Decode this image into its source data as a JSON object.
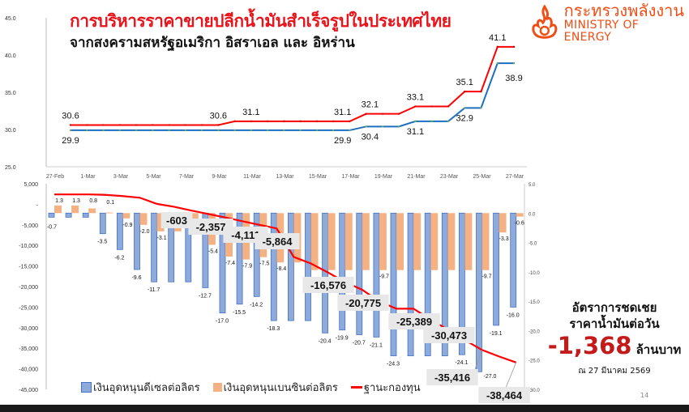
{
  "header": {
    "title": "การบริหารราคาขายปลีกน้ำมันสำเร็จรูปในประเทศไทย",
    "subtitle": "จากสงครามสหรัฐอเมริกา อิสราเอล และ อิหร่าน",
    "logo_th": "กระทรวงพลังงาน",
    "logo_en": "MINISTRY OF ENERGY",
    "logo_icon": "flame-icon"
  },
  "summary": {
    "line1": "อัตราการชดเชย",
    "line2": "ราคาน้ำมันต่อวัน",
    "value": "-1,368",
    "unit": "ล้านบาท",
    "date": "ณ 27 มีนาคม 2569"
  },
  "page_number": "14",
  "legend": {
    "diesel": "เงินอุดหนุนดีเซลต่อลิตร",
    "benzine": "เงินอุดหนุนเบนซินต่อลิตร",
    "fund": "ฐานะกองทุน"
  },
  "colors": {
    "red": "#ff0000",
    "blue": "#1f6fc1",
    "bar_blue": "#8eaadb",
    "bar_orange": "#f4b183",
    "title_red": "#e8141c",
    "logo_orange": "#f04e16"
  },
  "chart_data": [
    {
      "type": "line",
      "x_tick_labels": [
        "27-Feb",
        "1-Mar",
        "3-Mar",
        "5-Mar",
        "7-Mar",
        "9-Mar",
        "11-Mar",
        "13-Mar",
        "15-Mar",
        "17-Mar",
        "19-Mar",
        "21-Mar",
        "23-Mar",
        "25-Mar",
        "27-Mar"
      ],
      "y_tick_labels": [
        "45.0",
        "40.0",
        "35.0",
        "30.0",
        "25.0"
      ],
      "ylim": [
        25,
        45
      ],
      "points": 28,
      "series": [
        {
          "color": "#ff0000",
          "values": [
            30.6,
            30.6,
            30.6,
            30.6,
            30.6,
            30.6,
            30.6,
            30.6,
            30.6,
            30.6,
            31.1,
            31.1,
            31.1,
            31.1,
            31.1,
            31.1,
            31.1,
            31.1,
            32.1,
            32.1,
            32.1,
            33.1,
            33.1,
            33.1,
            35.1,
            35.1,
            41.1,
            41.1
          ],
          "labels": [
            {
              "i": 0,
              "text": "30.6"
            },
            {
              "i": 9,
              "text": "30.6"
            },
            {
              "i": 11,
              "text": "31.1"
            },
            {
              "i": 17,
              "text": "31.1"
            },
            {
              "i": 18,
              "text": "32.1"
            },
            {
              "i": 21,
              "text": "33.1"
            },
            {
              "i": 24,
              "text": "35.1"
            },
            {
              "i": 26,
              "text": "41.1"
            }
          ]
        },
        {
          "color": "#1f6fc1",
          "values": [
            29.9,
            29.9,
            29.9,
            29.9,
            29.9,
            29.9,
            29.9,
            29.9,
            29.9,
            29.9,
            29.9,
            29.9,
            29.9,
            29.9,
            29.9,
            29.9,
            29.9,
            29.9,
            30.4,
            30.4,
            30.4,
            31.1,
            31.1,
            31.1,
            32.9,
            32.9,
            38.9,
            38.9
          ],
          "labels": [
            {
              "i": 0,
              "text": "29.9"
            },
            {
              "i": 17,
              "text": "29.9"
            },
            {
              "i": 18,
              "text": "30.4"
            },
            {
              "i": 21,
              "text": "31.1"
            },
            {
              "i": 24,
              "text": "32.9"
            },
            {
              "i": 27,
              "text": "38.9"
            }
          ]
        }
      ]
    },
    {
      "type": "bar",
      "left_y_tick_labels": [
        "5,000",
        "-",
        "-5,000",
        "-10,000",
        "-15,000",
        "-20,000",
        "-25,000",
        "-30,000",
        "-35,000",
        "-40,000",
        "-45,000"
      ],
      "left_ylim": [
        -45000,
        5000
      ],
      "right_y_tick_labels": [
        "5.0",
        "0.0",
        "-5.0",
        "-10.0",
        "-15.0",
        "-20.0",
        "-25.0",
        "-30.0"
      ],
      "right_ylim": [
        -30,
        5
      ],
      "series": [
        {
          "name": "เงินอุดหนุนดีเซลต่อลิตร",
          "axis": "right",
          "color": "#8eaadb",
          "values": [
            -0.7,
            -0.7,
            -0.7,
            -3.5,
            -6.2,
            -9.6,
            -11.7,
            -11.7,
            -11.7,
            -12.7,
            -17.0,
            -15.5,
            -14.2,
            -18.3,
            -18.3,
            -18.3,
            -20.4,
            -19.9,
            -20.7,
            -21.1,
            -24.3,
            -24.3,
            -24.3,
            -24.3,
            -24.1,
            -27.0,
            -19.1,
            -16.0
          ],
          "labels": [
            "-0.7",
            null,
            null,
            "-3.5",
            "-6.2",
            "-9.6",
            "-11.7",
            null,
            null,
            "-12.7",
            "-17.0",
            "-15.5",
            "-14.2",
            "-18.3",
            null,
            null,
            "-20.4",
            "-19.9",
            "-20.7",
            "-21.1",
            "-24.3",
            null,
            null,
            null,
            "-24.1",
            "-27.0",
            "-19.1",
            "-16.0"
          ]
        },
        {
          "name": "เงินอุดหนุนเบนซินต่อลิตร",
          "axis": "right",
          "color": "#f4b183",
          "values": [
            1.3,
            1.3,
            0.8,
            0.1,
            -0.9,
            -2.0,
            -3.1,
            -3.1,
            -3.1,
            -5.4,
            -7.4,
            -7.9,
            -7.5,
            -8.4,
            -8.4,
            -9.7,
            -9.7,
            -9.7,
            -9.7,
            -9.7,
            -9.7,
            -9.7,
            -9.7,
            -9.7,
            -9.7,
            -9.7,
            -3.3,
            -0.6
          ],
          "labels": [
            "1.3",
            "1.3",
            "0.8",
            "0.1",
            "-0.9",
            "-2.0",
            "-3.1",
            null,
            null,
            "-5.4",
            "-7.4",
            "-7.9",
            "-7.5",
            "-8.4",
            null,
            null,
            null,
            null,
            null,
            "-9.7",
            null,
            null,
            null,
            null,
            null,
            "-9.7",
            "-3.3",
            "-0.6"
          ]
        },
        {
          "name": "ฐานะกองทุน",
          "axis": "left",
          "color": "#ff0000",
          "type": "line",
          "values": [
            2400,
            2400,
            2400,
            2300,
            2000,
            1600,
            100,
            -603,
            -1500,
            -2357,
            -3200,
            -4111,
            -5000,
            -5864,
            -12800,
            -14400,
            -16576,
            -18900,
            -20775,
            -23600,
            -25389,
            -25389,
            -28000,
            -30473,
            -33000,
            -35416,
            -37000,
            -38464
          ],
          "labels": [
            {
              "i": 7,
              "text": "-603"
            },
            {
              "i": 9,
              "text": "-2,357"
            },
            {
              "i": 11,
              "text": "-4,111"
            },
            {
              "i": 13,
              "text": "-5,864"
            },
            {
              "i": 16,
              "text": "-16,576"
            },
            {
              "i": 18,
              "text": "-20,775"
            },
            {
              "i": 21,
              "text": "-25,389"
            },
            {
              "i": 23,
              "text": "-30,473"
            },
            {
              "i": 25,
              "text": "-35,416"
            },
            {
              "i": 27,
              "text": "-38,464"
            }
          ]
        }
      ]
    }
  ]
}
